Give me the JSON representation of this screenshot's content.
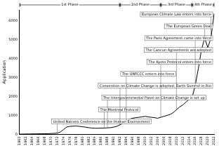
{
  "chart_data": {
    "type": "line",
    "y_label": "Application",
    "categories": [
      "1960",
      null,
      "1962",
      null,
      "1964",
      null,
      "1966",
      null,
      "1968",
      null,
      "1970",
      null,
      "1972",
      null,
      "1974",
      null,
      "1976",
      null,
      "1978",
      null,
      "1980",
      null,
      "1982",
      null,
      "1984",
      null,
      "1986",
      null,
      "1988",
      null,
      "1990",
      null,
      "1992",
      null,
      "1994",
      null,
      "1996",
      null,
      "1998",
      null,
      "2000",
      null,
      "2002",
      null,
      "2004",
      null,
      "2006",
      null,
      "2008",
      null,
      "2010",
      null,
      "2012",
      null,
      "2014",
      null,
      "2016",
      null,
      "2018",
      null,
      "2020",
      null,
      "2022"
    ],
    "values": [
      10,
      10,
      15,
      15,
      20,
      20,
      25,
      25,
      30,
      30,
      40,
      50,
      60,
      120,
      250,
      380,
      420,
      430,
      440,
      420,
      400,
      380,
      350,
      330,
      320,
      320,
      330,
      330,
      340,
      350,
      380,
      420,
      500,
      600,
      700,
      800,
      850,
      880,
      900,
      920,
      950,
      920,
      900,
      880,
      850,
      900,
      950,
      1000,
      1050,
      1150,
      1300,
      1450,
      1550,
      1700,
      1850,
      1950,
      2600,
      3500,
      4500,
      5100,
      4600,
      5100,
      6400
    ],
    "color": "#000000",
    "ylim": [
      0,
      6600
    ],
    "yticks": [
      0,
      1000,
      2000,
      3000,
      4000,
      5000,
      6000
    ],
    "grid": false,
    "annotations": [
      {
        "text": "United Nations Conference on the Human Environment",
        "x": 12
      },
      {
        "text": "The Montreal Protocol",
        "x": 27
      },
      {
        "text": "The Intergovernmental Panel on Climate Change is set up",
        "x": 28
      },
      {
        "text": "Convention on Climate Change is adopted; Earth Summit in Rio",
        "x": 32
      },
      {
        "text": "The UNFCCC enters into force",
        "x": 34
      },
      {
        "text": "The Kyoto Protocol enters into force",
        "x": 45
      },
      {
        "text": "The Cancun Agreements are adopted",
        "x": 50
      },
      {
        "text": "The Paris Agreement came into force",
        "x": 56
      },
      {
        "text": "The European Green Deal",
        "x": 59
      },
      {
        "text": "European Climate Law enters into force",
        "x": 61
      }
    ],
    "phases": [
      {
        "label": "1st Phase",
        "start": 0,
        "end": 32
      },
      {
        "label": "2nd Phase",
        "start": 32,
        "end": 45
      },
      {
        "label": "3rd Phase",
        "start": 45,
        "end": 55
      },
      {
        "label": "4th Phase",
        "start": 55,
        "end": 62
      }
    ]
  }
}
